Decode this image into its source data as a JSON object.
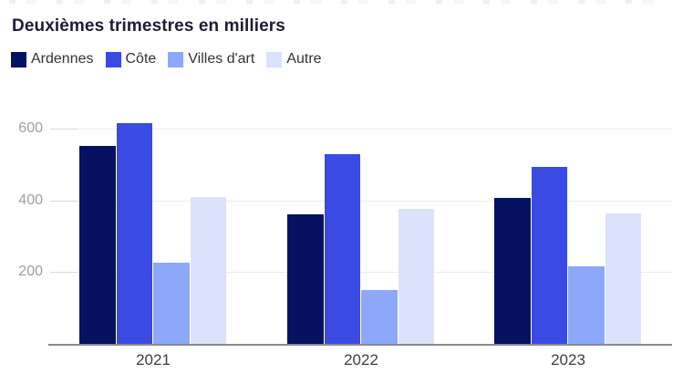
{
  "chart_data": {
    "type": "bar",
    "title": "Deuxièmes trimestres en milliers",
    "categories": [
      "2021",
      "2022",
      "2023"
    ],
    "series": [
      {
        "name": "Ardennes",
        "color": "#051161",
        "values": [
          550,
          360,
          406
        ]
      },
      {
        "name": "Côte",
        "color": "#3a4be4",
        "values": [
          615,
          527,
          492
        ]
      },
      {
        "name": "Villes d'art",
        "color": "#8da8f8",
        "values": [
          225,
          150,
          216
        ]
      },
      {
        "name": "Autre",
        "color": "#dae3fb",
        "values": [
          410,
          375,
          363
        ]
      }
    ],
    "xlabel": "",
    "ylabel": "",
    "yticks": [
      200,
      400,
      600
    ],
    "ylim": [
      0,
      660
    ],
    "grid": true,
    "legend_position": "top-left"
  },
  "axis_style": {
    "grid_color": "#ececf0",
    "tick_color": "#d8d8dd",
    "baseline_color": "#8b8b8b",
    "ytick_label_color": "#9e9ea4",
    "xtick_label_color": "#3d3d3d"
  }
}
